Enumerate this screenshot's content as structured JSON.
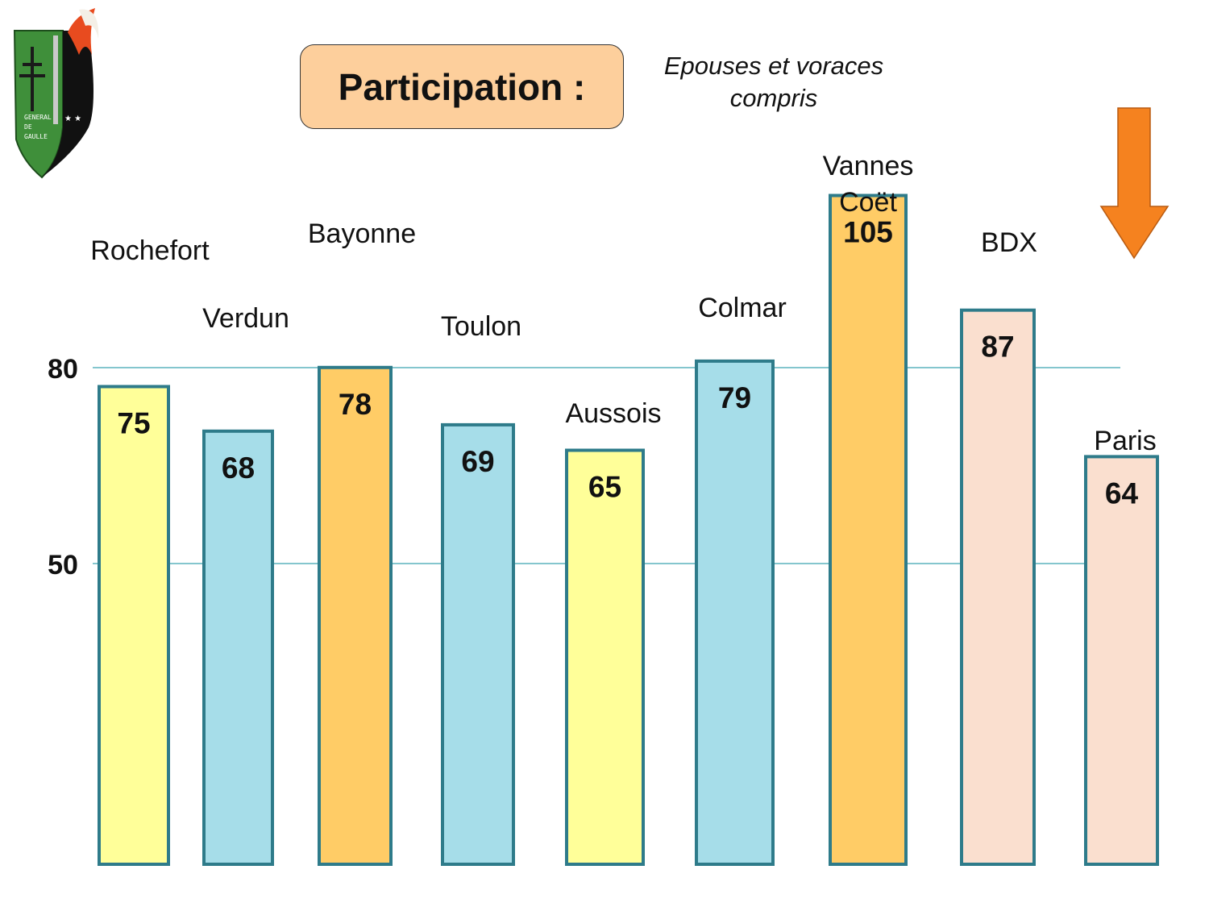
{
  "title": "Participation :",
  "subtitle": "Epouses  et  voraces compris",
  "logo": {
    "text": "GENERAL DE GAULLE",
    "icon": "cross-of-lorraine-emblem"
  },
  "decor": {
    "arrow_icon": "down-arrow-icon",
    "arrow_color": "#f5821f"
  },
  "chart_data": {
    "type": "bar",
    "categories": [
      "Rochefort",
      "Verdun",
      "Bayonne",
      "Toulon",
      "Aussois",
      "Colmar",
      "Vannes Coët",
      "BDX",
      "Paris"
    ],
    "values": [
      75,
      68,
      78,
      69,
      65,
      79,
      105,
      87,
      64
    ],
    "colors": [
      "#ffff99",
      "#a6dde9",
      "#ffcc66",
      "#a6dde9",
      "#ffff99",
      "#a6dde9",
      "#ffcc66",
      "#fadfcf",
      "#fadfcf"
    ],
    "bar_border_color": "#2e7b8a",
    "reference_lines": [
      80,
      50
    ],
    "reference_line_color": "#3aa3b0",
    "ytick_labels": [
      "80",
      "50"
    ],
    "xlabel": "",
    "ylabel": "",
    "grid": false,
    "legend": "none"
  }
}
